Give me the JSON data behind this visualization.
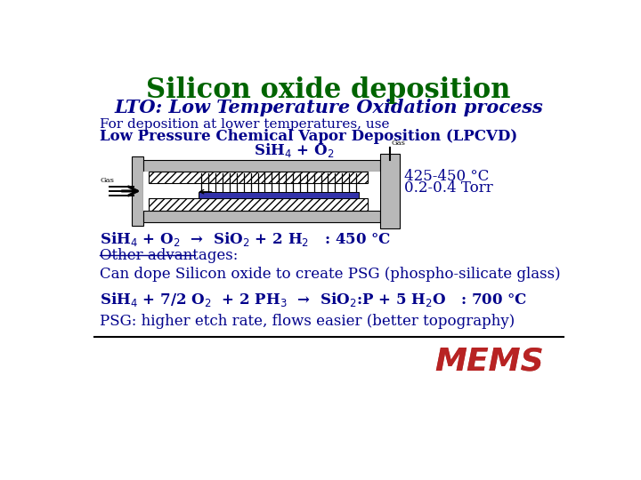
{
  "title": "Silicon oxide deposition",
  "title_color": "#006400",
  "subtitle": "LTO: Low Temperature Oxidation process",
  "subtitle_color": "#00008B",
  "line1": "For deposition at lower temperatures, use",
  "line2": "Low Pressure Chemical Vapor Deposition (LPCVD)",
  "text_color": "#00008B",
  "sih4_o2_label": "SiH$_4$ + O$_2$",
  "temp_label": "425-450 °C",
  "pressure_label": "0.2-0.4 Torr",
  "reaction1": "SiH$_4$ + O$_2$  →  SiO$_2$ + 2 H$_2$   : 450 °C",
  "other_adv": "Other advantages:",
  "can_dope": "Can dope Silicon oxide to create PSG (phospho-silicate glass)",
  "reaction2": "SiH$_4$ + 7/2 O$_2$  + 2 PH$_3$  →  SiO$_2$:P + 5 H$_2$O   : 700 °C",
  "psg_note": "PSG: higher etch rate, flows easier (better topography)",
  "bg_color": "#ffffff"
}
